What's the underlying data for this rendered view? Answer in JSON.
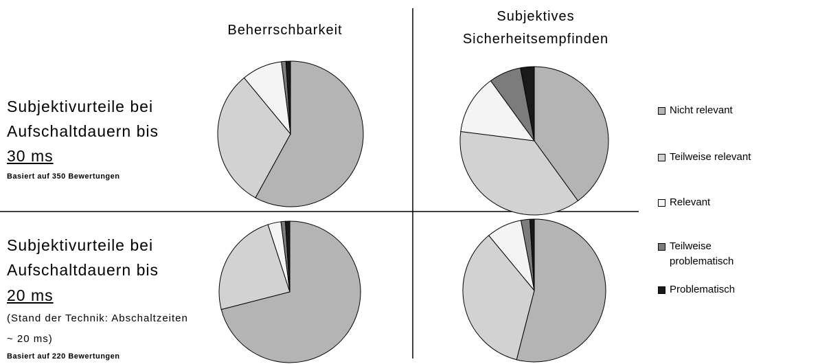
{
  "column_titles": [
    "Beherrschbarkeit",
    "Subjektives Sicherheitsempfinden"
  ],
  "rows": [
    {
      "label": "Subjektivurteile bei Aufschaltdauern bis",
      "duration": "30 ms",
      "basis": "Basiert auf 350 Bewertungen"
    },
    {
      "label": "Subjektivurteile bei Aufschaltdauern bis",
      "duration": "20 ms",
      "note": "(Stand der Technik: Abschaltzeiten ~ 20 ms)",
      "basis": "Basiert auf 220 Bewertungen"
    }
  ],
  "chart_data": [
    {
      "type": "pie",
      "categories": [
        "Nicht relevant",
        "Teilweise relevant",
        "Relevant",
        "Teilweise problematisch",
        "Problematisch"
      ],
      "values": [
        58,
        31,
        9,
        1,
        1
      ],
      "colors": [
        "#b4b4b4",
        "#d2d2d2",
        "#f4f4f4",
        "#7c7c7c",
        "#1a1a1a"
      ]
    },
    {
      "type": "pie",
      "categories": [
        "Nicht relevant",
        "Teilweise relevant",
        "Relevant",
        "Teilweise problematisch",
        "Problematisch"
      ],
      "values": [
        40,
        37,
        13,
        7,
        3
      ],
      "colors": [
        "#b4b4b4",
        "#d2d2d2",
        "#f4f4f4",
        "#7c7c7c",
        "#1a1a1a"
      ]
    },
    {
      "type": "pie",
      "categories": [
        "Nicht relevant",
        "Teilweise relevant",
        "Relevant",
        "Teilweise problematisch",
        "Problematisch"
      ],
      "values": [
        71,
        24,
        3,
        1,
        1
      ],
      "colors": [
        "#b4b4b4",
        "#d2d2d2",
        "#f4f4f4",
        "#7c7c7c",
        "#1a1a1a"
      ]
    },
    {
      "type": "pie",
      "categories": [
        "Nicht relevant",
        "Teilweise relevant",
        "Relevant",
        "Teilweise problematisch",
        "Problematisch"
      ],
      "values": [
        54,
        35,
        8,
        2,
        1
      ],
      "colors": [
        "#b4b4b4",
        "#d2d2d2",
        "#f4f4f4",
        "#7c7c7c",
        "#1a1a1a"
      ]
    }
  ]
}
